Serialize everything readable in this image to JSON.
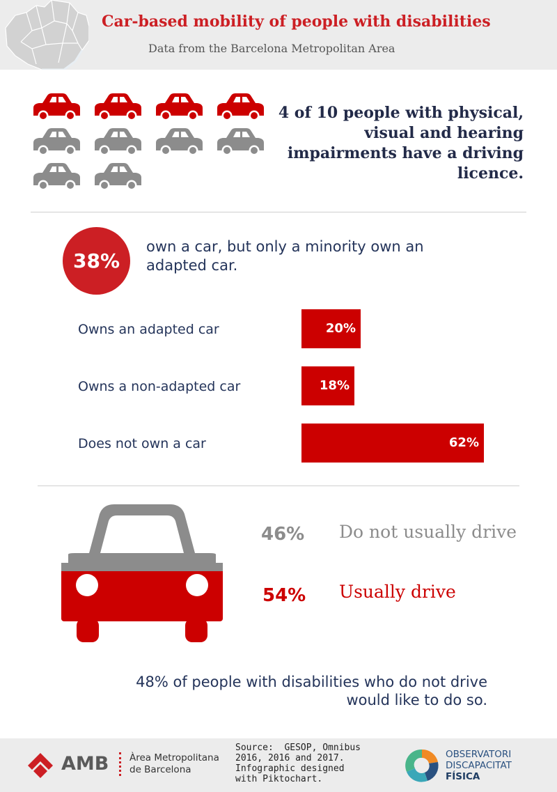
{
  "header": {
    "title": "Car-based mobility of people with disabilities",
    "subtitle": "Data from the Barcelona Metropolitan Area"
  },
  "licence": {
    "text": "4 of 10 people with physical, visual and hearing impairments have a driving licence.",
    "lines": [
      "4 of 10 people with physical,",
      "visual and hearing",
      "impairments have a driving",
      "licence."
    ],
    "highlighted_icons": 4,
    "total_icons": 10
  },
  "ownership": {
    "circle_value": "38%",
    "text_lines": [
      "own a car, but only a minority own an",
      "adapted car."
    ]
  },
  "chart_data": [
    {
      "type": "bar",
      "orientation": "horizontal",
      "categories": [
        "Owns an adapted car",
        "Owns a non-adapted car",
        "Does not own a car"
      ],
      "values": [
        20,
        18,
        62
      ],
      "value_labels": [
        "20%",
        "18%",
        "62%"
      ],
      "unit": "%"
    },
    {
      "type": "pie",
      "categories": [
        "Do not usually drive",
        "Usually drive"
      ],
      "values": [
        46,
        54
      ],
      "value_labels": [
        "46%",
        "54%"
      ],
      "colors": [
        "#8c8c8c",
        "#cc0000"
      ]
    }
  ],
  "wish": {
    "lines": [
      "48% of people with disabilities who do not drive",
      "would like to do so."
    ]
  },
  "footer": {
    "amb_abbr": "AMB",
    "amb_name_lines": [
      "Àrea Metropolitana",
      "de Barcelona"
    ],
    "source_lines": [
      "Source:  GESOP, Omnibus",
      "2016, 2016 and 2017.",
      "Infographic designed",
      "with Piktochart."
    ],
    "observatori_lines": [
      "OBSERVATORI",
      "DISCAPACITAT",
      "FÍSICA"
    ]
  },
  "colors": {
    "red": "#cc0000",
    "title_red": "#cc1f24",
    "grey": "#8c8c8c",
    "navy": "#24345a",
    "header_bg": "#ececec"
  },
  "icons": {
    "car": "car-icon",
    "map": "map-icon",
    "amb_logo": "amb-logo-icon",
    "observatori_logo": "observatori-logo-icon"
  }
}
